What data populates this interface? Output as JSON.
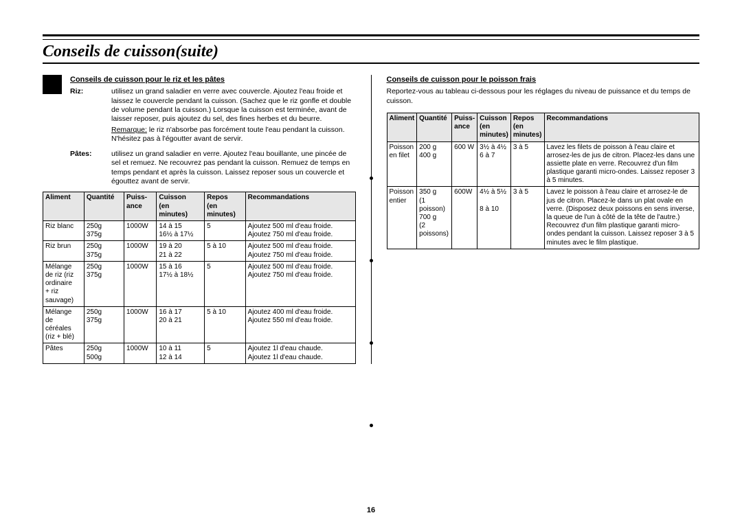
{
  "page": {
    "title": "Conseils de cuisson(suite)",
    "number": "16"
  },
  "left": {
    "heading": "Conseils de cuisson pour le riz et les pâtes",
    "riz_label": "Riz:",
    "riz_text": "utilisez un grand saladier en verre avec couvercle. Ajoutez l'eau froide et laissez le couvercle pendant la cuisson. (Sachez que le riz gonfle et double de volume pendant la cuisson.) Lorsque la cuisson est terminée, avant de laisser reposer, puis ajoutez du sel, des fines herbes et du beurre.",
    "remark_label": "Remarque:",
    "remark_text": "  le riz n'absorbe pas forcément toute l'eau pendant la cuisson. N'hésitez pas à l'égoutter avant de servir.",
    "pates_label": "Pâtes:",
    "pates_text": "utilisez un grand saladier en verre. Ajoutez l'eau bouillante, une pincée de sel et remuez. Ne recouvrez pas pendant la cuisson. Remuez de temps en temps pendant et après la cuisson. Laissez reposer sous un couvercle et égouttez avant de servir.",
    "headers": {
      "aliment": "Aliment",
      "quantite": "Quantité",
      "puissance": "Puiss-\nance",
      "cuisson": "Cuisson\n(en\nminutes)",
      "repos": "Repos\n(en\nminutes)",
      "reco": "Recommandations"
    },
    "rows": [
      {
        "aliment": "Riz blanc",
        "quantite": "250g\n375g",
        "puissance": "1000W",
        "cuisson": "14 à 15\n16½ à 17½",
        "repos": "5",
        "reco": "Ajoutez 500 ml d'eau froide.\nAjoutez 750 ml d'eau froide."
      },
      {
        "aliment": "Riz brun",
        "quantite": "250g\n375g",
        "puissance": "1000W",
        "cuisson": "19 à 20\n21 à 22",
        "repos": "5 à 10",
        "reco": "Ajoutez 500 ml d'eau froide.\nAjoutez 750 ml d'eau froide."
      },
      {
        "aliment": "Mélange\nde riz (riz\nordinaire\n+ riz\nsauvage)",
        "quantite": "250g\n375g",
        "puissance": "1000W",
        "cuisson": "15 à 16\n17½ à 18½",
        "repos": "5",
        "reco": "Ajoutez 500 ml d'eau froide.\nAjoutez 750 ml d'eau froide."
      },
      {
        "aliment": "Mélange\nde\ncéréales\n(riz + blé)",
        "quantite": "250g\n375g",
        "puissance": "1000W",
        "cuisson": "16 à 17\n20 à 21",
        "repos": "5 à 10",
        "reco": "Ajoutez 400 ml d'eau froide.\nAjoutez 550 ml d'eau froide."
      },
      {
        "aliment": "Pâtes",
        "quantite": "250g\n500g",
        "puissance": "1000W",
        "cuisson": "10 à 11\n12 à 14",
        "repos": "5",
        "reco": "Ajoutez 1l d'eau chaude.\nAjoutez 1l d'eau chaude."
      }
    ]
  },
  "right": {
    "heading": "Conseils de cuisson pour le poisson frais",
    "intro": "Reportez-vous au tableau ci-dessous pour les réglages du niveau de puissance et du temps de cuisson.",
    "headers": {
      "aliment": "Aliment",
      "quantite": "Quantité",
      "puissance": "Puiss-\nance",
      "cuisson": "Cuisson\n(en\nminutes)",
      "repos": "Repos\n(en\nminutes)",
      "reco": "Recommandations"
    },
    "rows": [
      {
        "aliment": "Poisson\nen filet",
        "quantite": "200 g\n400 g",
        "puissance": "600 W",
        "cuisson": "3½ à 4½\n6 à 7",
        "repos": "3 à 5",
        "reco": "Lavez les filets de poisson à l'eau claire et arrosez-les de jus de citron. Placez-les dans une assiette plate en verre. Recouvrez d'un film plastique garanti micro-ondes. Laissez reposer 3 à 5 minutes."
      },
      {
        "aliment": "Poisson\nentier",
        "quantite": "350 g\n(1 poisson)\n700 g\n(2 poissons)",
        "puissance": "600W",
        "cuisson": "4½ à 5½\n\n8 à 10",
        "repos": "3 à 5",
        "reco": "Lavez le poisson à l'eau claire et arrosez-le de jus de citron. Placez-le dans un plat ovale en verre. (Disposez deux poissons en sens inverse, la queue de l'un à côté de la tête de l'autre.) Recouvrez d'un film plastique garanti micro-ondes pendant la cuisson. Laissez reposer 3 à 5 minutes avec le film plastique."
      }
    ]
  },
  "binder_dots": [
    150,
    270,
    390,
    510
  ]
}
